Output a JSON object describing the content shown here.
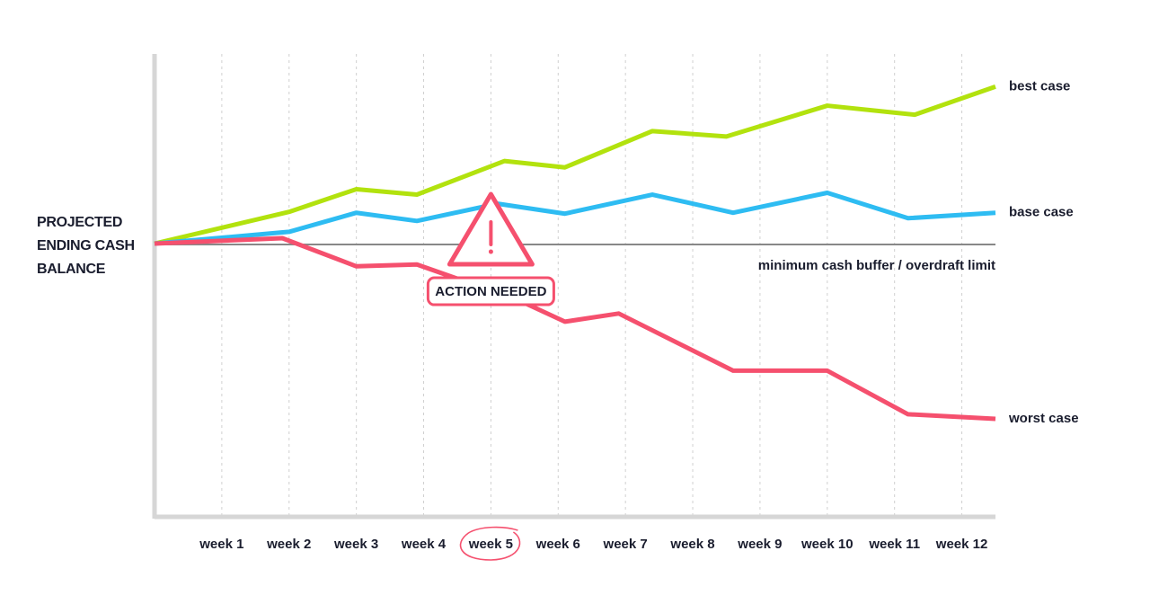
{
  "chart_data": {
    "type": "line",
    "y_label_lines": [
      "PROJECTED",
      "ENDING CASH",
      "BALANCE"
    ],
    "xlim": [
      0,
      12.5
    ],
    "ylim": [
      -30,
      21
    ],
    "xticks": [
      {
        "value": 1,
        "label": "week 1"
      },
      {
        "value": 2,
        "label": "week 2"
      },
      {
        "value": 3,
        "label": "week 3"
      },
      {
        "value": 4,
        "label": "week 4"
      },
      {
        "value": 5,
        "label": "week 5"
      },
      {
        "value": 6,
        "label": "week 6"
      },
      {
        "value": 7,
        "label": "week 7"
      },
      {
        "value": 8,
        "label": "week 8"
      },
      {
        "value": 9,
        "label": "week 9"
      },
      {
        "value": 10,
        "label": "week 10"
      },
      {
        "value": 11,
        "label": "week 11"
      },
      {
        "value": 12,
        "label": "week 12"
      }
    ],
    "grid": true,
    "series": [
      {
        "name": "best case",
        "color": "#b2e20e",
        "x": [
          0,
          2,
          3,
          3.9,
          5.2,
          6.1,
          7.4,
          8.5,
          10,
          11.3,
          12.5
        ],
        "values": [
          0.1,
          3.6,
          6.1,
          5.5,
          9.2,
          8.5,
          12.5,
          11.9,
          15.3,
          14.3,
          17.4
        ]
      },
      {
        "name": "base case",
        "color": "#2ebcf2",
        "x": [
          0,
          2,
          3,
          3.9,
          5.1,
          6.1,
          7.4,
          8.6,
          10,
          11.2,
          12.5
        ],
        "values": [
          0.1,
          1.4,
          3.5,
          2.6,
          4.5,
          3.4,
          5.5,
          3.5,
          5.7,
          2.9,
          3.5
        ]
      },
      {
        "name": "worst case",
        "color": "#f5506e",
        "x": [
          0,
          1.9,
          3,
          3.9,
          5.4,
          6.1,
          6.9,
          8.6,
          10,
          11.2,
          12.5
        ],
        "values": [
          0.1,
          0.7,
          -2.4,
          -2.2,
          -6.1,
          -8.5,
          -7.6,
          -13.9,
          -13.9,
          -18.7,
          -19.2
        ]
      }
    ],
    "threshold": {
      "value": 0,
      "label": "minimum cash buffer / overdraft limit",
      "color": "#888888"
    },
    "annotation": {
      "text": "ACTION NEEDED",
      "x": 5,
      "color": "#f5506e"
    }
  }
}
